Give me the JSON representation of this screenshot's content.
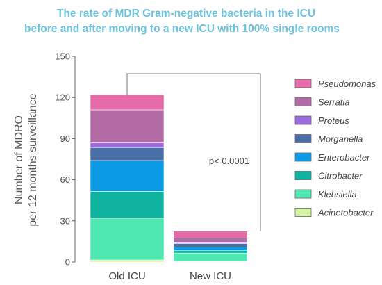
{
  "chart_data": {
    "type": "bar",
    "stacked": true,
    "title": "The rate of MDR Gram-negative bacteria in the ICU",
    "subtitle": "before and after moving to a new ICU with 100% single rooms",
    "title_color": "#6ec3de",
    "ylabel_line1": "Number of MDRO",
    "ylabel_line2": "per 12 months surveillance",
    "xlabel": "",
    "ylim": [
      0,
      150
    ],
    "yticks": [
      "0",
      "30",
      "60",
      "90",
      "120",
      "150"
    ],
    "grid": false,
    "legend_position": "right",
    "categories": [
      "Old ICU",
      "New ICU"
    ],
    "series": [
      {
        "name": "Acinetobacter",
        "color": "#d6f5a3",
        "values": [
          1.5,
          0.5
        ]
      },
      {
        "name": "Klebsiella",
        "color": "#4fe8b0",
        "values": [
          30.5,
          6
        ]
      },
      {
        "name": "Citrobacter",
        "color": "#10b3a0",
        "values": [
          19.5,
          2
        ]
      },
      {
        "name": "Enterobacter",
        "color": "#0b9ae6",
        "values": [
          22.5,
          2.5
        ]
      },
      {
        "name": "Morganella",
        "color": "#4a6ea8",
        "values": [
          9.5,
          2.5
        ]
      },
      {
        "name": "Proteus",
        "color": "#9b6be0",
        "values": [
          3.5,
          1
        ]
      },
      {
        "name": "Serratia",
        "color": "#b36ba6",
        "values": [
          24,
          3
        ]
      },
      {
        "name": "Pseudomonas",
        "color": "#e66ba8",
        "values": [
          11,
          5
        ]
      }
    ],
    "annotation": "p< 0.0001"
  }
}
